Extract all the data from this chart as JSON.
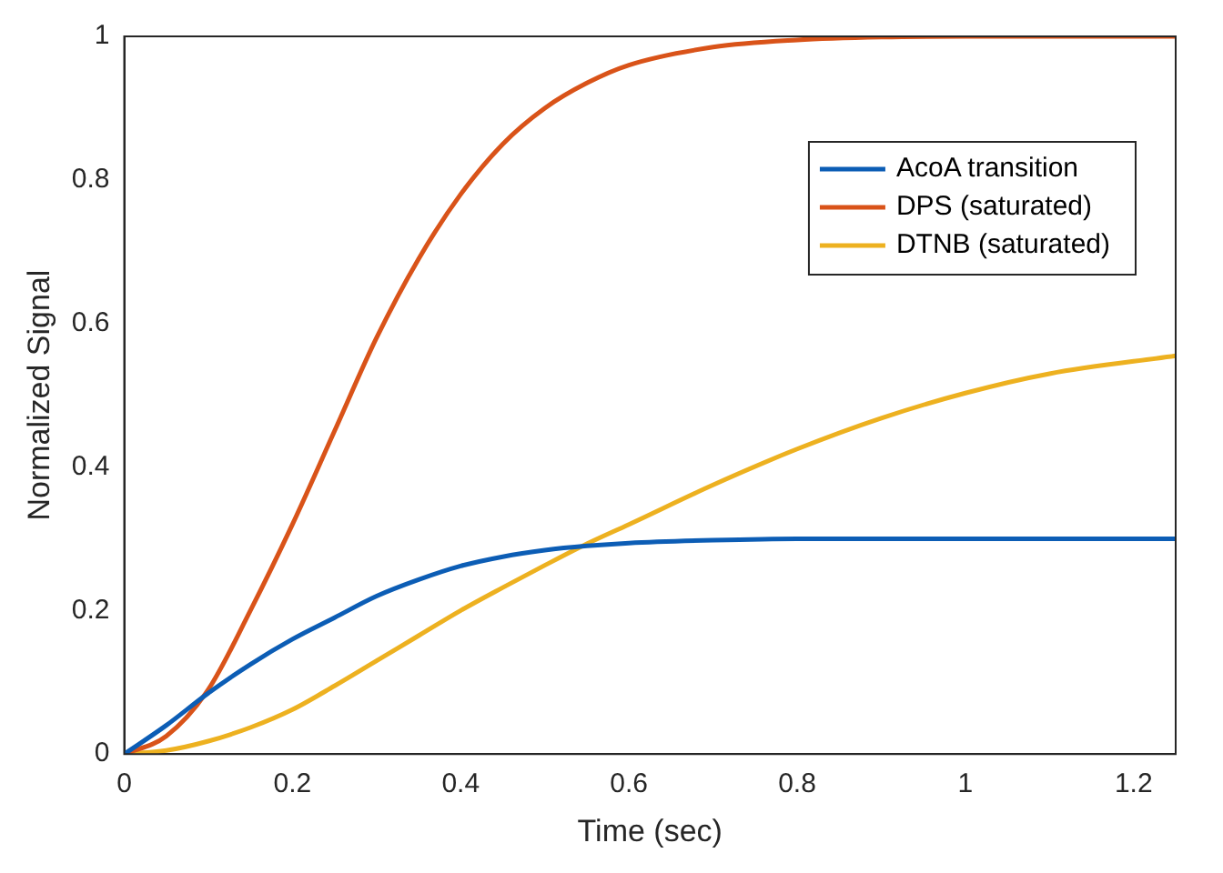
{
  "chart_data": {
    "type": "line",
    "xlabel": "Time (sec)",
    "ylabel": "Normalized Signal",
    "xlim": [
      0,
      1.25
    ],
    "ylim": [
      0,
      1
    ],
    "xticks": [
      0,
      0.2,
      0.4,
      0.6,
      0.8,
      1,
      1.2
    ],
    "yticks": [
      0,
      0.2,
      0.4,
      0.6,
      0.8,
      1
    ],
    "grid": false,
    "legend": "top right",
    "marker": "none",
    "line_style": "solid",
    "x": [
      0,
      0.05,
      0.1,
      0.15,
      0.2,
      0.25,
      0.3,
      0.35,
      0.4,
      0.45,
      0.5,
      0.55,
      0.6,
      0.7,
      0.8,
      0.9,
      1,
      1.1,
      1.25
    ],
    "series": [
      {
        "name": "AcoA transition",
        "color": "#0c5db5",
        "values": [
          0,
          0.04,
          0.085,
          0.125,
          0.16,
          0.19,
          0.22,
          0.243,
          0.262,
          0.275,
          0.284,
          0.29,
          0.294,
          0.298,
          0.3,
          0.3,
          0.3,
          0.3,
          0.3
        ]
      },
      {
        "name": "DPS (saturated)",
        "color": "#d95319",
        "values": [
          0,
          0.025,
          0.09,
          0.2,
          0.32,
          0.45,
          0.58,
          0.69,
          0.78,
          0.85,
          0.9,
          0.935,
          0.96,
          0.985,
          0.995,
          0.999,
          1,
          1,
          1
        ]
      },
      {
        "name": "DTNB (saturated)",
        "color": "#edb120",
        "values": [
          0,
          0.005,
          0.018,
          0.037,
          0.062,
          0.095,
          0.13,
          0.165,
          0.2,
          0.232,
          0.263,
          0.293,
          0.32,
          0.375,
          0.425,
          0.468,
          0.503,
          0.53,
          0.555
        ]
      }
    ]
  }
}
